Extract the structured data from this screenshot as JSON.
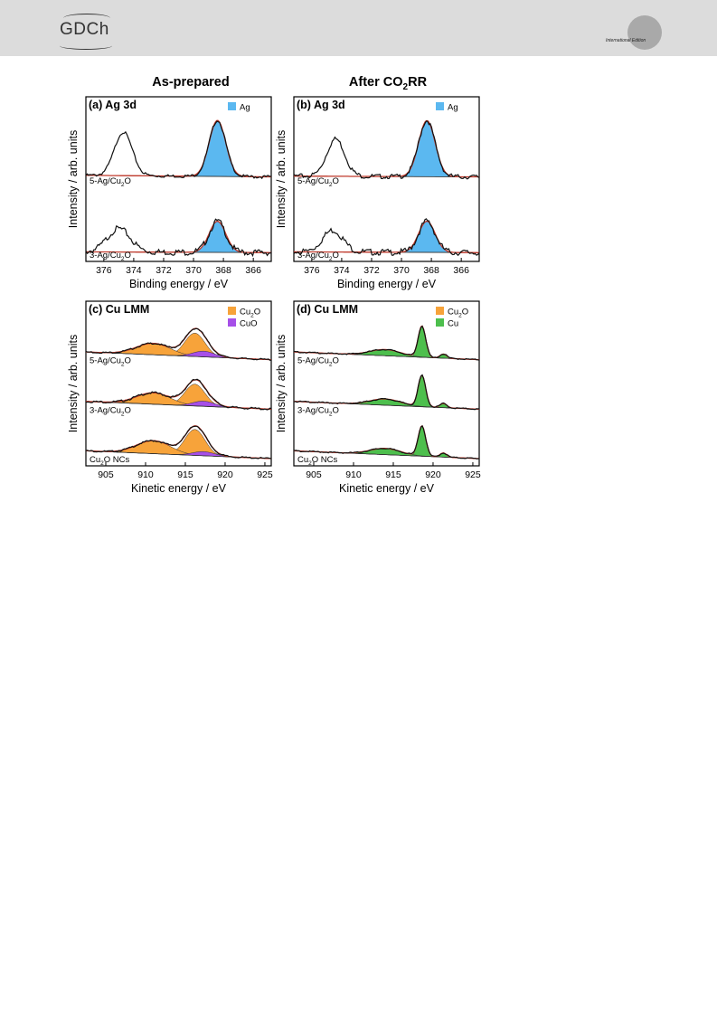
{
  "header": {
    "logo_text": "GDCh",
    "edition_text": "International Edition"
  },
  "column_titles": {
    "left": "As-prepared",
    "right_prefix": "After CO",
    "right_sub": "2",
    "right_suffix": "RR"
  },
  "colors": {
    "Ag": "#5bb8f0",
    "Cu2O": "#f7a33a",
    "CuO": "#a64fe8",
    "Cu": "#4dbf4d",
    "fit": "#c0392b",
    "data": "#111111"
  },
  "chart_data": [
    {
      "panel_label": "(a) Ag 3d",
      "type": "line",
      "ylabel": "Intensity / arb. units",
      "xlabel": "Binding energy / eV",
      "xlim": [
        377.2,
        364.8
      ],
      "xticks": [
        "376",
        "374",
        "372",
        "370",
        "368",
        "366"
      ],
      "legend": [
        {
          "label": "Ag",
          "color": "#5bb8f0"
        }
      ],
      "series": [
        {
          "name": "5-Ag/Cu2O",
          "label_main": "5-Ag/Cu",
          "label_sub": "2",
          "label_tail": "O",
          "background": [
            0.06,
            0.04
          ],
          "data_noise": 0.02,
          "broad_peaks": [
            {
              "center": 374.7,
              "height": 0.56,
              "fwhm": 1.4
            }
          ],
          "fill_peaks": [
            {
              "center": 368.4,
              "height": 0.72,
              "fwhm": 1.3,
              "color": "#5bb8f0"
            }
          ]
        },
        {
          "name": "3-Ag/Cu2O",
          "label_main": "3-Ag/Cu",
          "label_sub": "2",
          "label_tail": "O",
          "background": [
            0.03,
            0.02
          ],
          "data_noise": 0.04,
          "broad_peaks": [
            {
              "center": 375.0,
              "height": 0.3,
              "fwhm": 1.8
            }
          ],
          "fill_peaks": [
            {
              "center": 368.4,
              "height": 0.4,
              "fwhm": 1.3,
              "color": "#5bb8f0"
            }
          ]
        }
      ]
    },
    {
      "panel_label": "(b) Ag 3d",
      "type": "line",
      "ylabel": "Intensity / arb. units",
      "xlabel": "Binding energy / eV",
      "xlim": [
        377.2,
        364.8
      ],
      "xticks": [
        "376",
        "374",
        "372",
        "370",
        "368",
        "366"
      ],
      "legend": [
        {
          "label": "Ag",
          "color": "#5bb8f0"
        }
      ],
      "series": [
        {
          "name": "5-Ag/Cu2O",
          "label_main": "5-Ag/Cu",
          "label_sub": "2",
          "label_tail": "O",
          "background": [
            0.05,
            0.04
          ],
          "data_noise": 0.03,
          "broad_peaks": [
            {
              "center": 374.4,
              "height": 0.48,
              "fwhm": 1.4
            }
          ],
          "fill_peaks": [
            {
              "center": 368.3,
              "height": 0.72,
              "fwhm": 1.3,
              "color": "#5bb8f0"
            }
          ]
        },
        {
          "name": "3-Ag/Cu2O",
          "label_main": "3-Ag/Cu",
          "label_sub": "2",
          "label_tail": "O",
          "background": [
            0.03,
            0.02
          ],
          "data_noise": 0.04,
          "broad_peaks": [
            {
              "center": 374.6,
              "height": 0.28,
              "fwhm": 1.6
            }
          ],
          "fill_peaks": [
            {
              "center": 368.3,
              "height": 0.4,
              "fwhm": 1.3,
              "color": "#5bb8f0"
            }
          ]
        }
      ]
    },
    {
      "panel_label": "(c) Cu LMM",
      "type": "line",
      "ylabel": "Intensity / arb. units",
      "xlabel": "Kinetic energy / eV",
      "xlim": [
        902.5,
        925.8
      ],
      "xticks": [
        "905",
        "910",
        "915",
        "920",
        "925"
      ],
      "legend": [
        {
          "label": "Cu2O",
          "main": "Cu",
          "sub": "2",
          "tail": "O",
          "color": "#f7a33a"
        },
        {
          "label": "CuO",
          "main": "CuO",
          "sub": "",
          "tail": "",
          "color": "#a64fe8"
        }
      ],
      "series": [
        {
          "name": "5-Ag/Cu2O",
          "label_main": "5-Ag/Cu",
          "label_sub": "2",
          "label_tail": "O",
          "background": [
            0.15,
            0.0
          ],
          "data_noise": 0.015,
          "broad_peaks": [],
          "fill_peaks": [
            {
              "center": 916.2,
              "height": 0.45,
              "fwhm": 3.0,
              "color": "#f7a33a"
            },
            {
              "center": 911.0,
              "height": 0.22,
              "fwhm": 5.0,
              "color": "#f7a33a"
            },
            {
              "center": 917.3,
              "height": 0.11,
              "fwhm": 3.2,
              "color": "#a64fe8"
            }
          ]
        },
        {
          "name": "3-Ag/Cu2O",
          "label_main": "3-Ag/Cu",
          "label_sub": "2",
          "label_tail": "O",
          "background": [
            0.15,
            0.0
          ],
          "data_noise": 0.02,
          "broad_peaks": [],
          "fill_peaks": [
            {
              "center": 916.2,
              "height": 0.42,
              "fwhm": 3.0,
              "color": "#f7a33a"
            },
            {
              "center": 911.0,
              "height": 0.22,
              "fwhm": 5.0,
              "color": "#f7a33a"
            },
            {
              "center": 917.3,
              "height": 0.1,
              "fwhm": 3.2,
              "color": "#a64fe8"
            }
          ]
        },
        {
          "name": "Cu2O NCs",
          "label_main": "Cu",
          "label_sub": "2",
          "label_tail": "O NCs",
          "background": [
            0.15,
            0.0
          ],
          "data_noise": 0.015,
          "broad_peaks": [],
          "fill_peaks": [
            {
              "center": 916.2,
              "height": 0.5,
              "fwhm": 3.0,
              "color": "#f7a33a"
            },
            {
              "center": 911.0,
              "height": 0.25,
              "fwhm": 5.0,
              "color": "#f7a33a"
            },
            {
              "center": 917.3,
              "height": 0.08,
              "fwhm": 3.2,
              "color": "#a64fe8"
            }
          ]
        }
      ]
    },
    {
      "panel_label": "(d) Cu LMM",
      "type": "line",
      "ylabel": "Intensity / arb. units",
      "xlabel": "Kinetic energy / eV",
      "xlim": [
        902.5,
        925.8
      ],
      "xticks": [
        "905",
        "910",
        "915",
        "920",
        "925"
      ],
      "legend": [
        {
          "label": "Cu2O",
          "main": "Cu",
          "sub": "2",
          "tail": "O",
          "color": "#f7a33a"
        },
        {
          "label": "Cu",
          "main": "Cu",
          "sub": "",
          "tail": "",
          "color": "#4dbf4d"
        }
      ],
      "series": [
        {
          "name": "5-Ag/Cu2O",
          "label_main": "5-Ag/Cu",
          "label_sub": "2",
          "label_tail": "O",
          "background": [
            0.15,
            0.0
          ],
          "data_noise": 0.012,
          "broad_peaks": [],
          "fill_peaks": [
            {
              "center": 918.6,
              "height": 0.6,
              "fwhm": 1.1,
              "color": "#4dbf4d"
            },
            {
              "center": 914.0,
              "height": 0.12,
              "fwhm": 4.5,
              "color": "#4dbf4d"
            },
            {
              "center": 921.3,
              "height": 0.08,
              "fwhm": 1.0,
              "color": "#4dbf4d"
            }
          ]
        },
        {
          "name": "3-Ag/Cu2O",
          "label_main": "3-Ag/Cu",
          "label_sub": "2",
          "label_tail": "O",
          "background": [
            0.15,
            0.0
          ],
          "data_noise": 0.012,
          "broad_peaks": [],
          "fill_peaks": [
            {
              "center": 918.6,
              "height": 0.6,
              "fwhm": 1.1,
              "color": "#4dbf4d"
            },
            {
              "center": 914.0,
              "height": 0.12,
              "fwhm": 4.5,
              "color": "#4dbf4d"
            },
            {
              "center": 921.3,
              "height": 0.08,
              "fwhm": 1.0,
              "color": "#4dbf4d"
            }
          ]
        },
        {
          "name": "Cu2O NCs",
          "label_main": "Cu",
          "label_sub": "2",
          "label_tail": "O NCs",
          "background": [
            0.15,
            0.0
          ],
          "data_noise": 0.012,
          "broad_peaks": [],
          "fill_peaks": [
            {
              "center": 918.6,
              "height": 0.58,
              "fwhm": 1.1,
              "color": "#4dbf4d"
            },
            {
              "center": 914.0,
              "height": 0.12,
              "fwhm": 4.5,
              "color": "#4dbf4d"
            },
            {
              "center": 921.3,
              "height": 0.08,
              "fwhm": 1.0,
              "color": "#4dbf4d"
            }
          ]
        }
      ]
    }
  ]
}
